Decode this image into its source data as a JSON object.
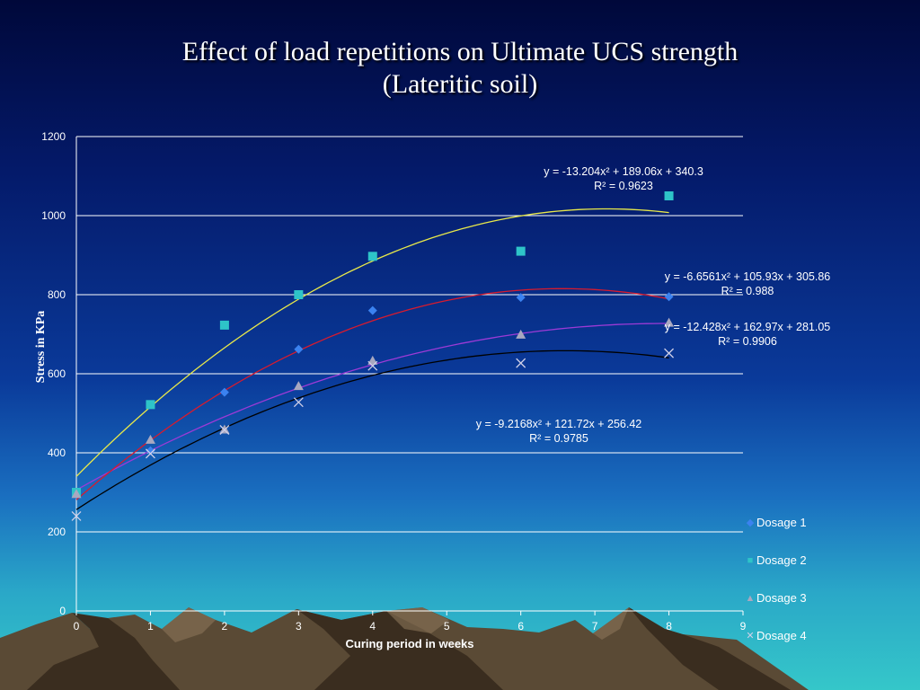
{
  "title_line1": "Effect of  load repetitions on Ultimate UCS strength",
  "title_line2": "(Lateritic soil)",
  "chart_data": {
    "type": "scatter",
    "xlabel": "Curing period in weeks",
    "ylabel": "Stress in KPa",
    "xlim": [
      0,
      9
    ],
    "ylim": [
      0,
      1200
    ],
    "xticks": [
      0,
      1,
      2,
      3,
      4,
      5,
      6,
      7,
      8,
      9
    ],
    "yticks": [
      0,
      200,
      400,
      600,
      800,
      1000,
      1200
    ],
    "grid": "horizontal",
    "legend_position": "right",
    "series": [
      {
        "name": "Dosage 1",
        "marker": "diamond",
        "color": "#3b82f0",
        "trend_color": "#9c3ad6",
        "x": [
          0,
          1,
          2,
          3,
          4,
          6,
          8
        ],
        "y": [
          295,
          405,
          553,
          662,
          760,
          793,
          795
        ],
        "trend": {
          "a": -6.6561,
          "b": 105.93,
          "c": 305.86
        },
        "equation": "y = -6.6561x² + 105.93x + 305.86",
        "r2": "R² = 0.988"
      },
      {
        "name": "Dosage 2",
        "marker": "square",
        "color": "#2ec4c8",
        "trend_color": "#e8e84a",
        "x": [
          0,
          1,
          2,
          3,
          4,
          6,
          8
        ],
        "y": [
          300,
          522,
          723,
          800,
          897,
          910,
          1050
        ],
        "trend": {
          "a": -13.204,
          "b": 189.06,
          "c": 340.3
        },
        "equation": "y = -13.204x² + 189.06x + 340.3",
        "r2": "R² = 0.9623"
      },
      {
        "name": "Dosage 3",
        "marker": "triangle",
        "color": "#a8a8c0",
        "trend_color": "#d81b2e",
        "x": [
          0,
          1,
          2,
          3,
          4,
          6,
          8
        ],
        "y": [
          295,
          432,
          458,
          568,
          632,
          698,
          728
        ],
        "trend": {
          "a": -12.428,
          "b": 162.97,
          "c": 281.05
        },
        "equation": "y = -12.428x² + 162.97x + 281.05",
        "r2": "R² = 0.9906"
      },
      {
        "name": "Dosage 4",
        "marker": "x",
        "color": "#d0d0e8",
        "trend_color": "#000000",
        "x": [
          0,
          1,
          2,
          3,
          4,
          6,
          8
        ],
        "y": [
          240,
          398,
          458,
          528,
          620,
          627,
          652
        ],
        "trend": {
          "a": -9.2168,
          "b": 121.72,
          "c": 256.42
        },
        "equation": "y = -9.2168x² + 121.72x + 256.42",
        "r2": "R² = 0.9785"
      }
    ]
  }
}
